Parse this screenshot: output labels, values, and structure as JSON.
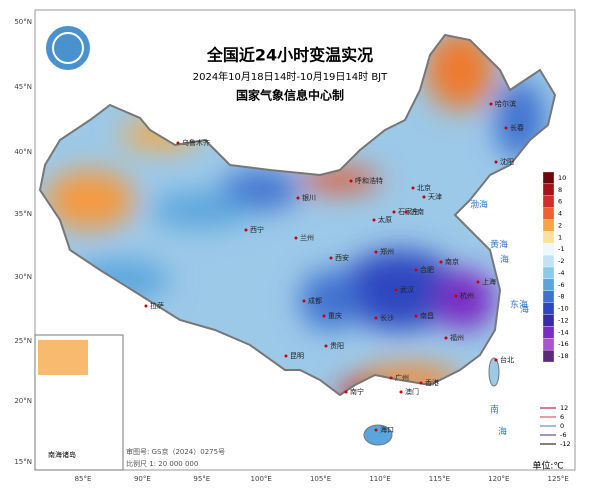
{
  "header": {
    "title": "全国近24小时变温实况",
    "subtitle": "2024年10月18日14时-10月19日14时 BJT",
    "producer": "国家气象信息中心制"
  },
  "lat_labels": [
    "50°N",
    "45°N",
    "40°N",
    "35°N",
    "30°N",
    "25°N",
    "20°N",
    "15°N"
  ],
  "lon_labels": [
    "85°E",
    "90°E",
    "95°E",
    "100°E",
    "105°E",
    "110°E",
    "115°E",
    "120°E",
    "125°E"
  ],
  "legend": {
    "items": [
      {
        "label": "10",
        "color": "#6b0a0a"
      },
      {
        "label": "8",
        "color": "#a5141a"
      },
      {
        "label": "6",
        "color": "#d42b2b"
      },
      {
        "label": "4",
        "color": "#f06030"
      },
      {
        "label": "2",
        "color": "#f9a341"
      },
      {
        "label": "1",
        "color": "#fde0a0"
      },
      {
        "label": "-1",
        "color": "#eef7fb"
      },
      {
        "label": "-2",
        "color": "#c2e3f3"
      },
      {
        "label": "-4",
        "color": "#8fc9ea"
      },
      {
        "label": "-6",
        "color": "#5aa5dd"
      },
      {
        "label": "-8",
        "color": "#3f72d0"
      },
      {
        "label": "-10",
        "color": "#2e47c0"
      },
      {
        "label": "-12",
        "color": "#3a2aa8"
      },
      {
        "label": "-14",
        "color": "#7a2cc4"
      },
      {
        "label": "-16",
        "color": "#a855d0"
      },
      {
        "label": "-18",
        "color": "#5b2a7a"
      }
    ],
    "contours": [
      {
        "label": "12",
        "color": "#d0506a"
      },
      {
        "label": "6",
        "color": "#e07a8a"
      },
      {
        "label": "0",
        "color": "#7fa8d8"
      },
      {
        "label": "-6",
        "color": "#8a6ab8"
      },
      {
        "label": "-12",
        "color": "#555"
      }
    ],
    "unit": "单位:℃"
  },
  "cities": [
    "乌鲁木齐",
    "呼和浩特",
    "北京",
    "天津",
    "石家庄",
    "太原",
    "济南",
    "银川",
    "兰州",
    "西宁",
    "西安",
    "郑州",
    "哈尔滨",
    "长春",
    "沈阳",
    "拉萨",
    "成都",
    "重庆",
    "武汉",
    "合肥",
    "南京",
    "上海",
    "杭州",
    "长沙",
    "南昌",
    "贵阳",
    "昆明",
    "南宁",
    "广州",
    "福州",
    "台北",
    "香港",
    "澳门",
    "海口"
  ],
  "seas": [
    "渤海",
    "黄海",
    "海",
    "东海",
    "海",
    "南",
    "海"
  ],
  "inset": {
    "label": "南海诸岛"
  },
  "footer": {
    "review": "审图号: GS京（2024）0275号",
    "scale": "比例尺 1: 20 000 000"
  }
}
